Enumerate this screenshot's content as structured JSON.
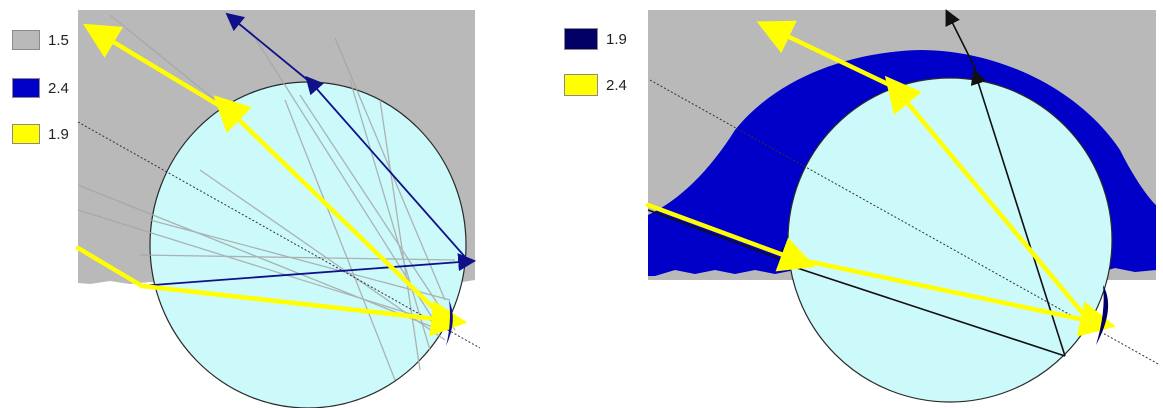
{
  "left_diagram": {
    "legend": [
      {
        "label": "1.5",
        "color": "#b9b9b9"
      },
      {
        "label": "2.4",
        "color": "#0000c8"
      },
      {
        "label": "1.9",
        "color": "#ffff00"
      }
    ]
  },
  "right_diagram": {
    "legend": [
      {
        "label": "1.9",
        "color": "#000066"
      },
      {
        "label": "2.4",
        "color": "#ffff00"
      }
    ]
  },
  "colors": {
    "sphere_fill": "#ccf9fa",
    "medium_gray": "#b9b9b9",
    "medium_blue": "#0000c8",
    "ray_yellow": "#ffff00",
    "ray_dark_blue": "#10108a",
    "ray_black": "#111111"
  }
}
